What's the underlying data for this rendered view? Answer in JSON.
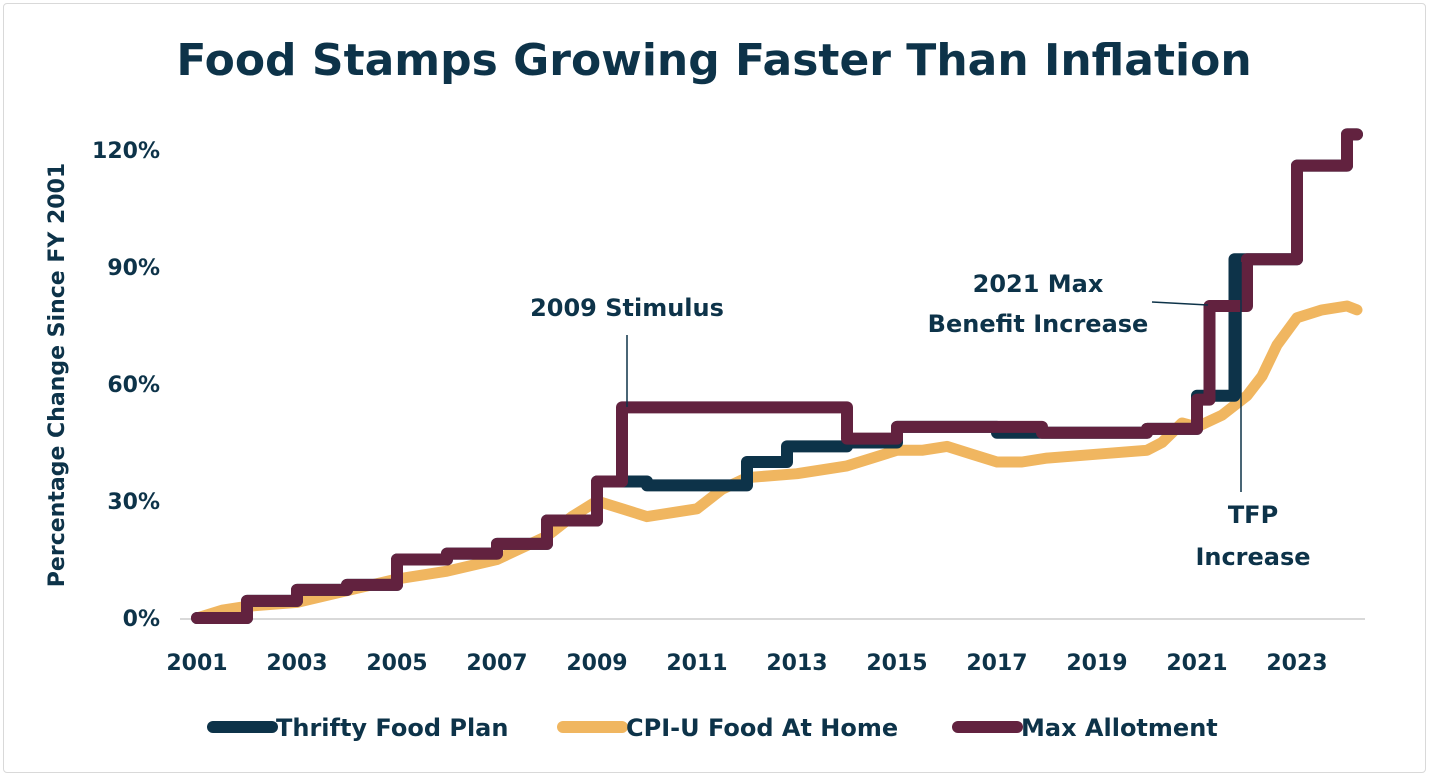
{
  "chart_data": {
    "type": "line",
    "title": "Food Stamps Growing Faster Than Inflation",
    "ylabel": "Percentage Change Since FY 2001",
    "xlabel": "",
    "xlim": [
      2001,
      2024.2
    ],
    "ylim": [
      0,
      125
    ],
    "x_ticks": [
      "2001",
      "2003",
      "2005",
      "2007",
      "2009",
      "2011",
      "2013",
      "2015",
      "2017",
      "2019",
      "2021",
      "2023"
    ],
    "y_ticks": [
      "0%",
      "30%",
      "60%",
      "90%",
      "120%"
    ],
    "grid": false,
    "legend": "bottom",
    "colors": {
      "Thrifty Food Plan": "#0d3349",
      "CPI-U Food At Home": "#f0b660",
      "Max Allotment": "#62223f"
    },
    "annotations": [
      "2009 Stimulus",
      "2021 Max",
      "Benefit Increase",
      "TFP",
      "Increase"
    ],
    "series": [
      {
        "name": "Thrifty Food Plan",
        "step": true,
        "points": [
          [
            2001,
            0
          ],
          [
            2002,
            4.4
          ],
          [
            2003,
            7.2
          ],
          [
            2004,
            8.5
          ],
          [
            2005,
            15
          ],
          [
            2006,
            16.5
          ],
          [
            2007,
            19
          ],
          [
            2008,
            25
          ],
          [
            2009,
            35
          ],
          [
            2010,
            34
          ],
          [
            2012,
            40
          ],
          [
            2012.8,
            44
          ],
          [
            2014,
            45
          ],
          [
            2015,
            49
          ],
          [
            2017,
            47.5
          ],
          [
            2020,
            48.5
          ],
          [
            2021,
            57
          ],
          [
            2021.75,
            92
          ],
          [
            2023,
            116
          ],
          [
            2024,
            124
          ],
          [
            2024.2,
            124
          ]
        ]
      },
      {
        "name": "CPI-U Food At Home",
        "step": false,
        "points": [
          [
            2001,
            0
          ],
          [
            2001.5,
            2
          ],
          [
            2002,
            3
          ],
          [
            2003,
            4
          ],
          [
            2004,
            7
          ],
          [
            2005,
            10
          ],
          [
            2006,
            12
          ],
          [
            2007,
            15
          ],
          [
            2008,
            21
          ],
          [
            2008.5,
            26
          ],
          [
            2009,
            30
          ],
          [
            2009.5,
            28
          ],
          [
            2010,
            26
          ],
          [
            2010.5,
            27
          ],
          [
            2011,
            28
          ],
          [
            2011.5,
            33
          ],
          [
            2012,
            36
          ],
          [
            2013,
            37
          ],
          [
            2014,
            39
          ],
          [
            2014.5,
            41
          ],
          [
            2015,
            43
          ],
          [
            2015.5,
            43
          ],
          [
            2016,
            44
          ],
          [
            2016.5,
            42
          ],
          [
            2017,
            40
          ],
          [
            2017.5,
            40
          ],
          [
            2018,
            41
          ],
          [
            2019,
            42
          ],
          [
            2020,
            43
          ],
          [
            2020.3,
            45
          ],
          [
            2020.7,
            50
          ],
          [
            2021,
            49
          ],
          [
            2021.5,
            52
          ],
          [
            2022,
            57
          ],
          [
            2022.3,
            62
          ],
          [
            2022.6,
            70
          ],
          [
            2023,
            77
          ],
          [
            2023.5,
            79
          ],
          [
            2024,
            80
          ],
          [
            2024.2,
            79
          ]
        ]
      },
      {
        "name": "Max Allotment",
        "step": true,
        "points": [
          [
            2001,
            0
          ],
          [
            2002,
            4.4
          ],
          [
            2003,
            7.2
          ],
          [
            2004,
            8.5
          ],
          [
            2005,
            15
          ],
          [
            2006,
            16.5
          ],
          [
            2007,
            19
          ],
          [
            2008,
            25
          ],
          [
            2009,
            35
          ],
          [
            2009.5,
            54
          ],
          [
            2014,
            46
          ],
          [
            2015,
            49
          ],
          [
            2017.9,
            47.5
          ],
          [
            2020,
            48.5
          ],
          [
            2021,
            56
          ],
          [
            2021.25,
            80
          ],
          [
            2022,
            92
          ],
          [
            2023,
            116
          ],
          [
            2024,
            124
          ],
          [
            2024.2,
            124
          ]
        ]
      }
    ]
  }
}
